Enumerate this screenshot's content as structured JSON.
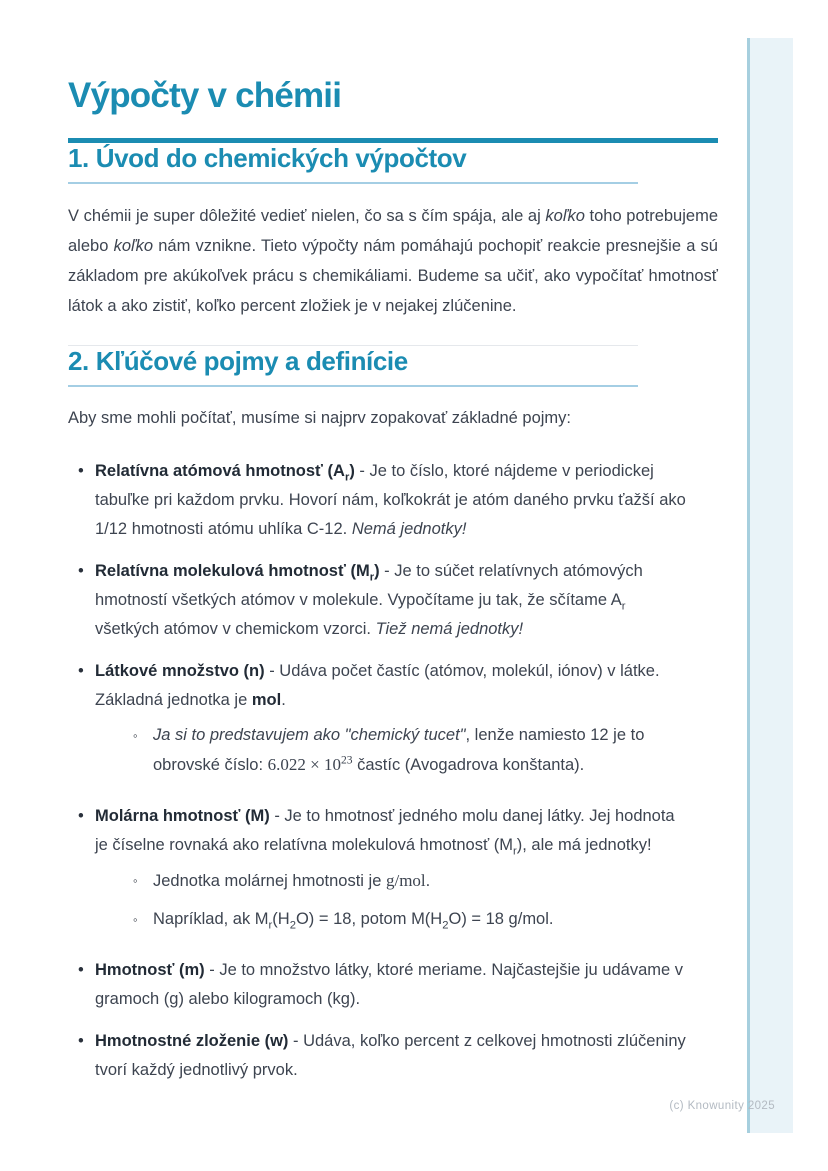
{
  "title": "Výpočty v chémii",
  "footer": "(c) Knowunity 2025",
  "glyphs": {
    "bullet": "•",
    "sub_bullet": "◦"
  },
  "colors": {
    "accent": "#1b8cb2",
    "heading_underline": "#a4cee4",
    "sidebar_fill": "#e9f3f8",
    "sidebar_edge": "#a6cfde",
    "body_text": "#3d4450",
    "footer_text": "#b3bac2"
  },
  "section1": {
    "heading": "1. Úvod do chemických výpočtov",
    "para": {
      "a": "V chémii je super dôležité vedieť nielen, čo sa s čím spája, ale aj ",
      "em1": "koľko",
      "b": " toho potrebujeme alebo ",
      "em2": "koľko",
      "c": " nám vznikne. Tieto výpočty nám pomáhajú pochopiť reakcie presnejšie a sú základom pre akúkoľvek prácu s chemikáliami. Budeme sa učiť, ako vypočítať hmotnosť látok a ako zistiť, koľko percent zložiek je v nejakej zlúčenine."
    }
  },
  "section2": {
    "heading": "2. Kľúčové pojmy a definície",
    "intro": "Aby sme mohli počítať, musíme si najprv zopakovať základné pojmy:",
    "b1": {
      "term": "Relatívna atómová hmotnosť (A",
      "term_sub": "r",
      "term_end": ")",
      "body": " - Je to číslo, ktoré nájdeme v periodickej tabuľke pri každom prvku. Hovorí nám, koľkokrát je atóm daného prvku ťažší ako 1/12 hmotnosti atómu uhlíka C-12. ",
      "em": "Nemá jednotky!"
    },
    "b2": {
      "term": "Relatívna molekulová hmotnosť (M",
      "term_sub": "r",
      "term_end": ")",
      "body1": " - Je to súčet relatívnych atómových hmotností všetkých atómov v molekule. Vypočítame ju tak, že sčítame A",
      "sub1": "r",
      "body2": " všetkých atómov v chemickom vzorci. ",
      "em": "Tiež nemá jednotky!"
    },
    "b3": {
      "term": "Látkové množstvo (n)",
      "body1": " - Udáva počet častíc (atómov, molekúl, iónov) v látke. Základná jednotka je ",
      "bold": "mol",
      "body2": ".",
      "sub": {
        "em": "Ja si to predstavujem ako \"chemický tucet\"",
        "text1": ", lenže namiesto 12 je to obrovské číslo: ",
        "math": "6.022 × 10",
        "sup": "23",
        "text2": " častíc (Avogadrova konštanta)."
      }
    },
    "b4": {
      "term": "Molárna hmotnosť (M)",
      "body1": " - Je to hmotnosť jedného molu danej látky. Jej hodnota je číselne rovnaká ako relatívna molekulová hmotnosť (M",
      "sub1": "r",
      "body2": "), ale má jednotky!",
      "sub_a": {
        "text1": "Jednotka molárnej hmotnosti je ",
        "math": "g/mol",
        "text2": "."
      },
      "sub_b": {
        "t1": "Napríklad, ak M",
        "s1": "r",
        "t2": "(H",
        "s2": "2",
        "t3": "O) = 18, potom M(H",
        "s3": "2",
        "t4": "O) = 18 g/mol."
      }
    },
    "b5": {
      "term": "Hmotnosť (m)",
      "body": " - Je to množstvo látky, ktoré meriame. Najčastejšie ju udávame v gramoch (g) alebo kilogramoch (kg)."
    },
    "b6": {
      "term": "Hmotnostné zloženie (w)",
      "body": " - Udáva, koľko percent z celkovej hmotnosti zlúčeniny tvorí každý jednotlivý prvok."
    }
  }
}
